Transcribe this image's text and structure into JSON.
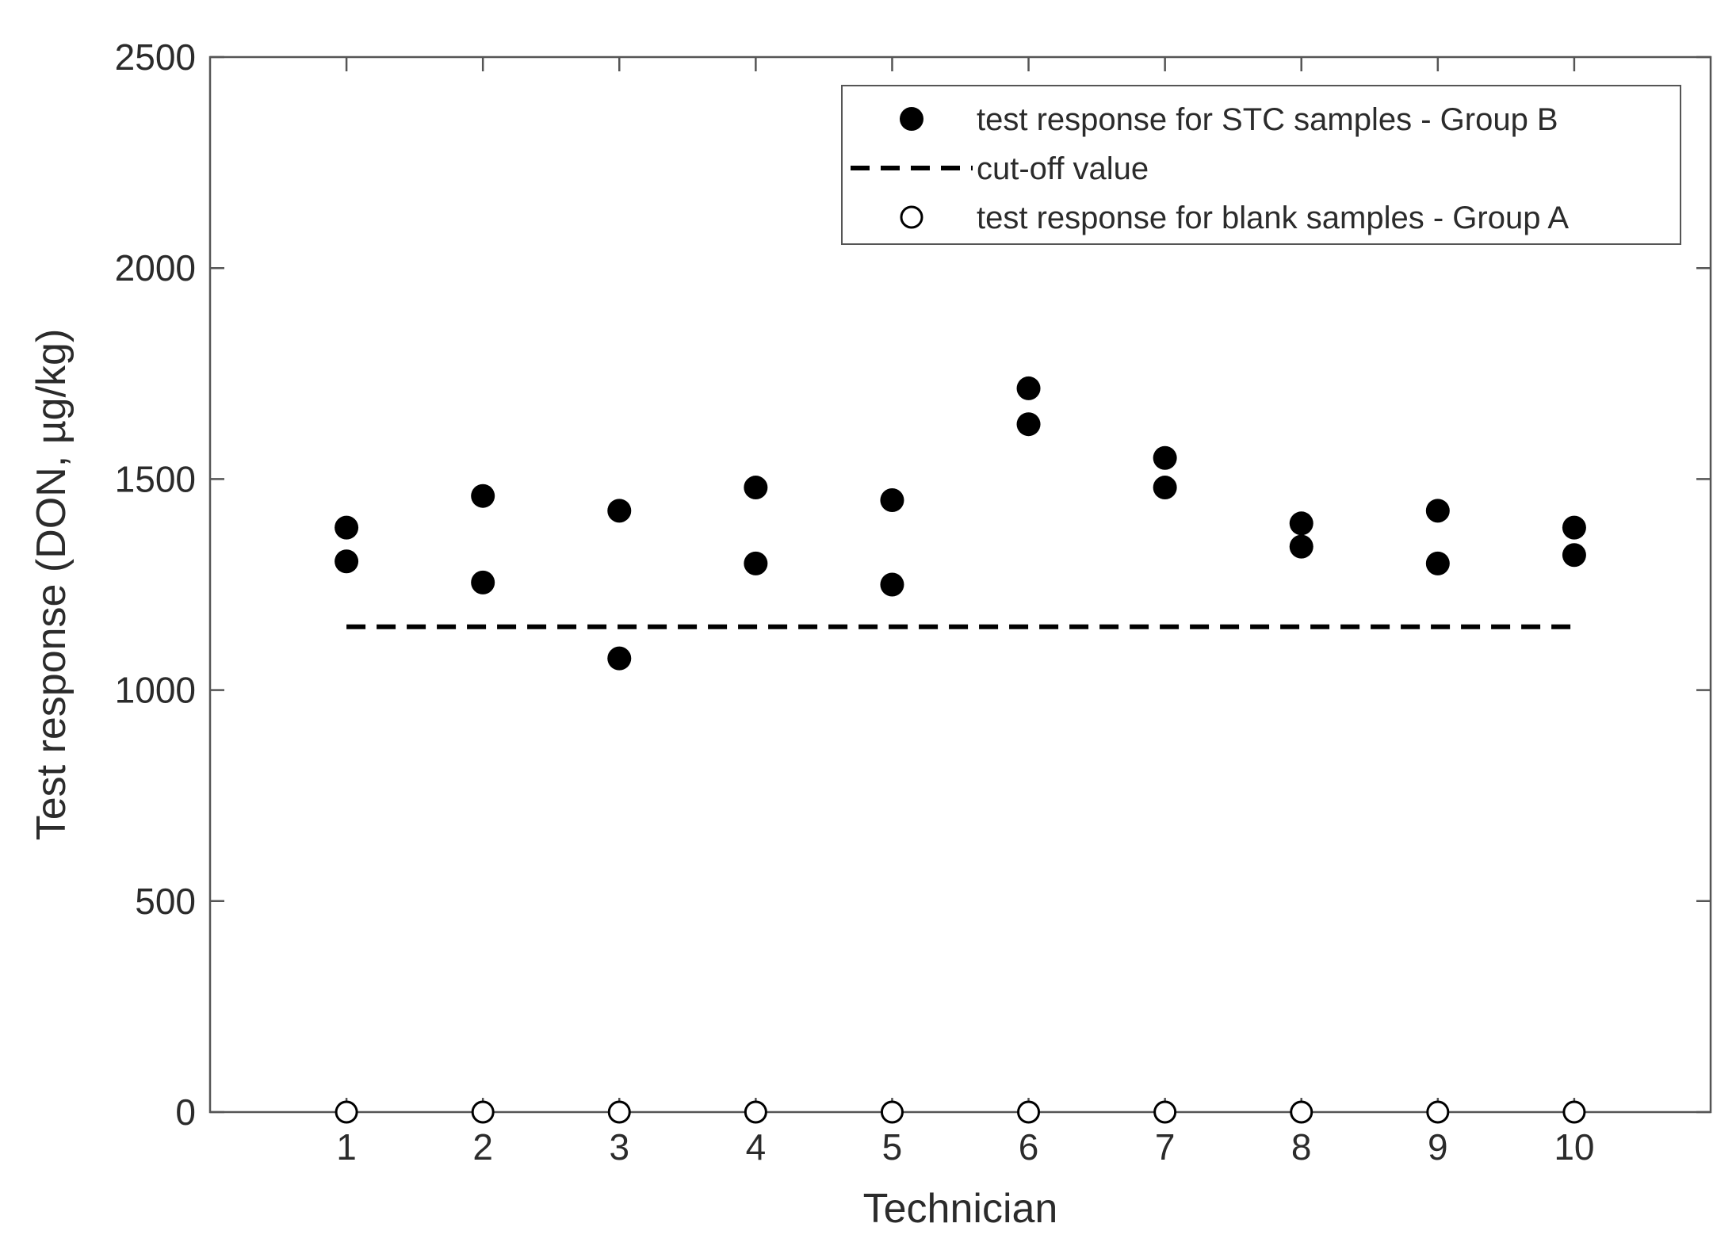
{
  "chart_data": {
    "type": "scatter",
    "xlabel": "Technician",
    "ylabel": "Test response (DON, µg/kg)",
    "xlim": [
      0,
      11
    ],
    "ylim": [
      0,
      2500
    ],
    "x_ticks": [
      1,
      2,
      3,
      4,
      5,
      6,
      7,
      8,
      9,
      10
    ],
    "y_ticks": [
      0,
      500,
      1000,
      1500,
      2000,
      2500
    ],
    "grid": false,
    "legend_position": "top-right",
    "legend": [
      {
        "label": "test response for STC samples - Group B",
        "marker": "filled-circle"
      },
      {
        "label": "cut-off value",
        "marker": "dashed-line"
      },
      {
        "label": "test response for blank samples - Group A",
        "marker": "open-circle"
      }
    ],
    "series": [
      {
        "name": "test response for STC samples - Group B",
        "style": "filled-circle",
        "points": [
          [
            1,
            1385
          ],
          [
            1,
            1305
          ],
          [
            2,
            1460
          ],
          [
            2,
            1255
          ],
          [
            3,
            1425
          ],
          [
            3,
            1075
          ],
          [
            4,
            1480
          ],
          [
            4,
            1300
          ],
          [
            5,
            1450
          ],
          [
            5,
            1250
          ],
          [
            6,
            1715
          ],
          [
            6,
            1630
          ],
          [
            7,
            1550
          ],
          [
            7,
            1480
          ],
          [
            8,
            1395
          ],
          [
            8,
            1340
          ],
          [
            9,
            1425
          ],
          [
            9,
            1300
          ],
          [
            10,
            1385
          ],
          [
            10,
            1320
          ]
        ]
      },
      {
        "name": "cut-off value",
        "style": "dashed-line",
        "x": [
          1,
          10
        ],
        "y": [
          1150,
          1150
        ]
      },
      {
        "name": "test response for blank samples - Group A",
        "style": "open-circle",
        "points": [
          [
            1,
            0
          ],
          [
            2,
            0
          ],
          [
            3,
            0
          ],
          [
            4,
            0
          ],
          [
            5,
            0
          ],
          [
            6,
            0
          ],
          [
            7,
            0
          ],
          [
            8,
            0
          ],
          [
            9,
            0
          ],
          [
            10,
            0
          ]
        ]
      }
    ]
  },
  "colors": {
    "axis": "#555555",
    "marker": "#000000",
    "text": "#2b2b2b"
  }
}
